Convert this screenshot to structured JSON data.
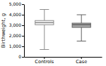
{
  "chart_data": {
    "type": "box",
    "ylabel": "Birthweight, g",
    "categories": [
      "Controls",
      "Case"
    ],
    "mean": [
      3250,
      3050
    ],
    "q1": [
      3050,
      2800
    ],
    "q3": [
      3450,
      3200
    ],
    "whisker_low": [
      700,
      1500
    ],
    "whisker_high": [
      4500,
      4000
    ],
    "colors": [
      "#f8f8f8",
      "#aaaaaa"
    ],
    "ylim": [
      0,
      5000
    ],
    "yticks": [
      0,
      {
        "value": 1000,
        "label": "1,000"
      },
      {
        "value": 2000,
        "label": "2,000"
      },
      {
        "value": 3000,
        "label": "3,000"
      },
      {
        "value": 4000,
        "label": "4,000"
      },
      {
        "value": 5000,
        "label": "5,000"
      }
    ],
    "grid": false
  }
}
